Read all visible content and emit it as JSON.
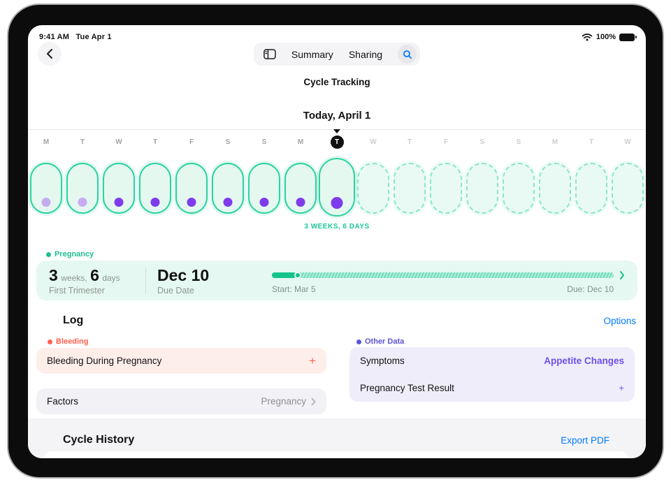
{
  "status_bar": {
    "time": "9:41 AM",
    "date": "Tue Apr 1",
    "battery": "100%"
  },
  "nav": {
    "summary_label": "Summary",
    "sharing_label": "Sharing",
    "page_title": "Cycle Tracking"
  },
  "timeline": {
    "today_title": "Today, April 1",
    "duration_label": "3 WEEKS, 6 DAYS",
    "days": [
      {
        "letter": "M",
        "state": "past",
        "dot": "light"
      },
      {
        "letter": "T",
        "state": "past",
        "dot": "light"
      },
      {
        "letter": "W",
        "state": "past",
        "dot": "dark"
      },
      {
        "letter": "T",
        "state": "past",
        "dot": "dark"
      },
      {
        "letter": "F",
        "state": "past",
        "dot": "dark"
      },
      {
        "letter": "S",
        "state": "past",
        "dot": "dark"
      },
      {
        "letter": "S",
        "state": "past",
        "dot": "dark"
      },
      {
        "letter": "M",
        "state": "past",
        "dot": "dark"
      },
      {
        "letter": "T",
        "state": "today",
        "dot": "dark"
      },
      {
        "letter": "W",
        "state": "future",
        "dot": "none"
      },
      {
        "letter": "T",
        "state": "future",
        "dot": "none"
      },
      {
        "letter": "F",
        "state": "future",
        "dot": "none"
      },
      {
        "letter": "S",
        "state": "future",
        "dot": "none"
      },
      {
        "letter": "S",
        "state": "future",
        "dot": "none"
      },
      {
        "letter": "M",
        "state": "future",
        "dot": "none"
      },
      {
        "letter": "T",
        "state": "future",
        "dot": "none"
      },
      {
        "letter": "W",
        "state": "future",
        "dot": "none"
      }
    ]
  },
  "pregnancy": {
    "section_label": "Pregnancy",
    "weeks_value": "3",
    "weeks_unit": "weeks,",
    "days_value": "6",
    "days_unit": "days",
    "trimester": "First Trimester",
    "due_value": "Dec 10",
    "due_label": "Due Date",
    "start_text": "Start: Mar 5",
    "due_text": "Due: Dec 10",
    "progress_percent": 7
  },
  "log": {
    "heading": "Log",
    "options_label": "Options",
    "bleeding": {
      "section_label": "Bleeding",
      "item_label": "Bleeding During Pregnancy",
      "add_label": "+"
    },
    "factors": {
      "label": "Factors",
      "value": "Pregnancy"
    },
    "other_data": {
      "section_label": "Other Data",
      "rows": [
        {
          "label": "Symptoms",
          "value": "Appetite Changes"
        },
        {
          "label": "Pregnancy Test Result",
          "value": "+"
        }
      ]
    }
  },
  "cycle_history": {
    "heading": "Cycle History",
    "export_label": "Export PDF"
  },
  "colors": {
    "teal": "#2bd3a0",
    "teal_text": "#1cc795",
    "mint_bg": "#e5f8f1",
    "purple_dark": "#7e3cec",
    "purple_light": "#c6abf2",
    "indigo_label": "#5b53d6",
    "appetite_purple": "#6e50e8",
    "red": "#ff624d",
    "pink_bg": "#fdeeea",
    "gray_bg": "#f1f1f6",
    "lavender_bg": "#efedfa",
    "link_blue": "#007aff"
  }
}
